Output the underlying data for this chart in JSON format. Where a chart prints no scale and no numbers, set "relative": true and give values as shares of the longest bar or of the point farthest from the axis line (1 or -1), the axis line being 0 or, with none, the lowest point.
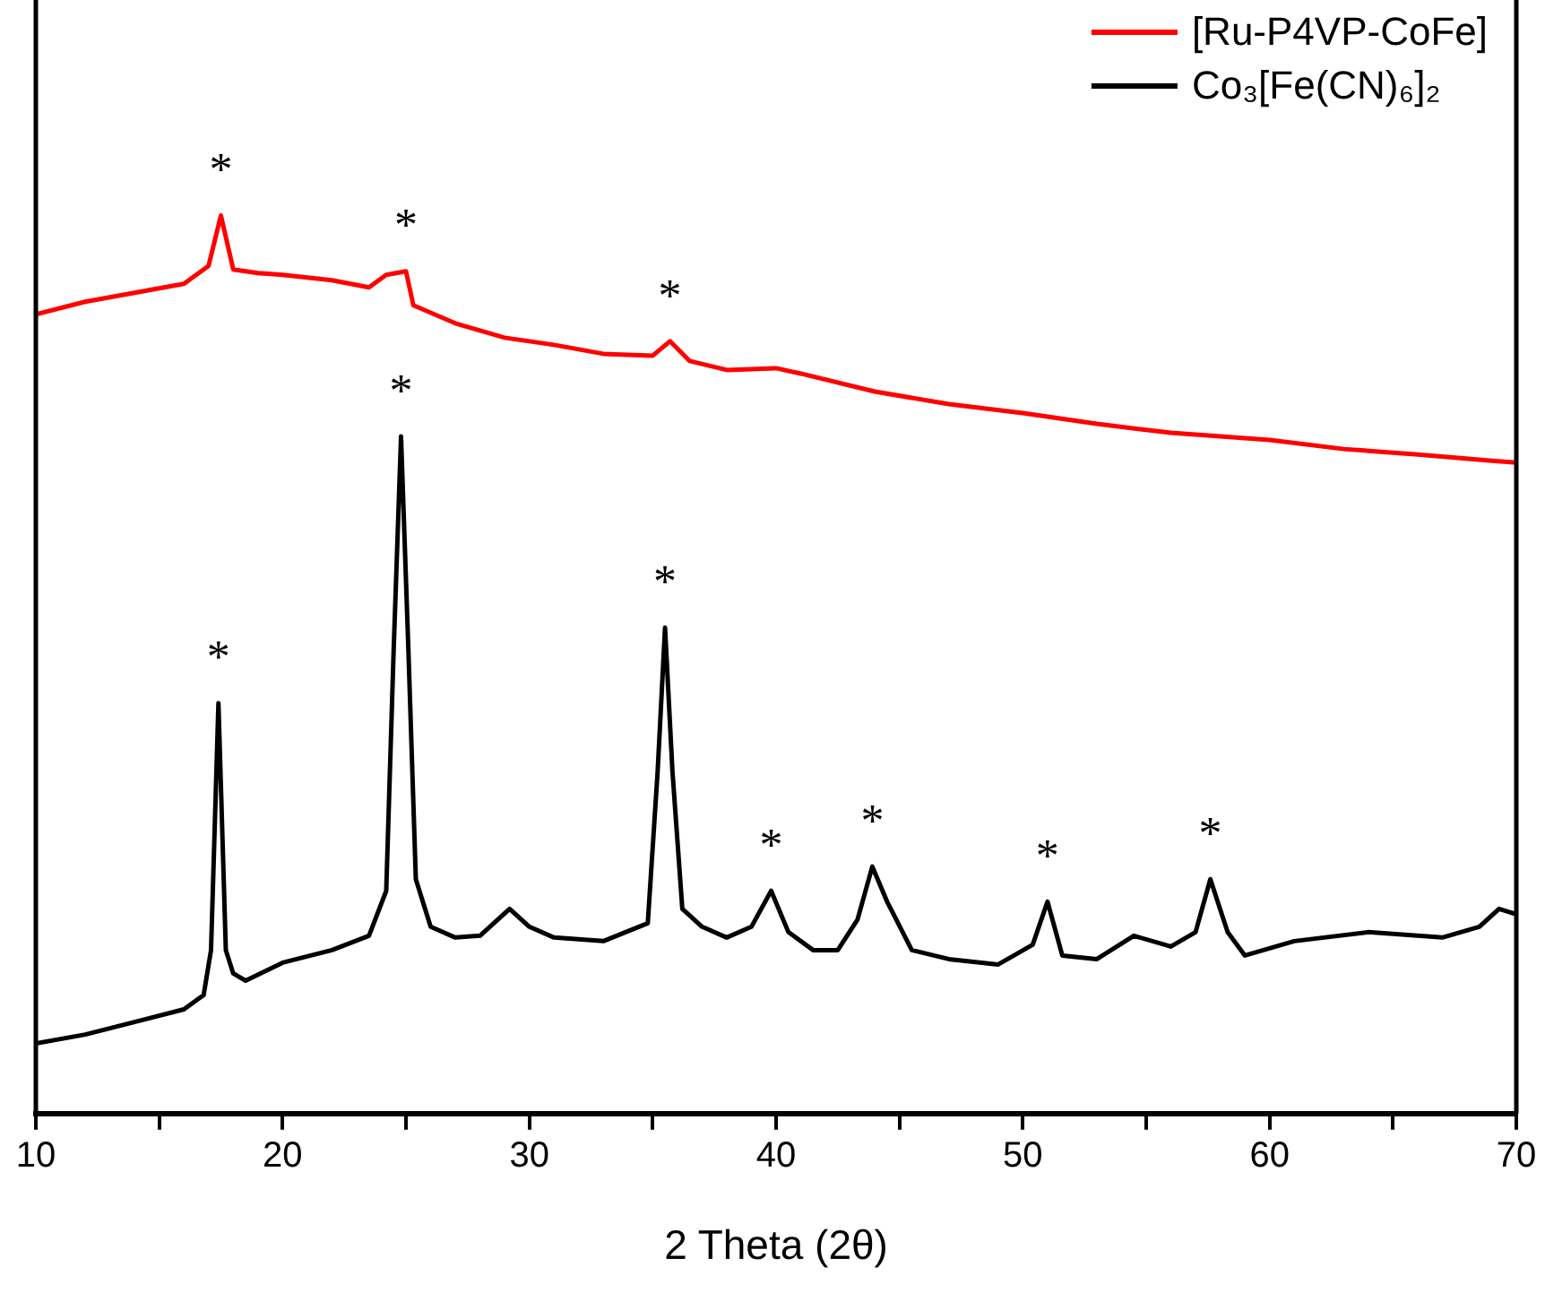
{
  "chart_data": {
    "type": "line",
    "relative": true,
    "xlabel": "2 Theta (2θ)",
    "xlim": [
      10,
      70
    ],
    "xticks": [
      10,
      {
        "value": 15,
        "label": null
      },
      20,
      {
        "value": 25,
        "label": null
      },
      30,
      {
        "value": 35,
        "label": null
      },
      40,
      {
        "value": 45,
        "label": null
      },
      50,
      {
        "value": 55,
        "label": null
      },
      60,
      {
        "value": 65,
        "label": null
      },
      70
    ],
    "legend": "top right",
    "marker": "none",
    "line_style": "solid",
    "series": [
      {
        "name": "[Ru-P4VP-CoFe]",
        "color": "#ff0000",
        "x": [
          10,
          12,
          14,
          16,
          17,
          17.5,
          18,
          19,
          20,
          22,
          23.5,
          24.2,
          25,
          25.3,
          27,
          29,
          31,
          33,
          35,
          35.7,
          36.5,
          38,
          40,
          41,
          44,
          47,
          50,
          53,
          56,
          60,
          63,
          66,
          69,
          70
        ],
        "values": [
          0.89,
          0.904,
          0.914,
          0.924,
          0.944,
          1,
          0.94,
          0.936,
          0.934,
          0.928,
          0.92,
          0.934,
          0.938,
          0.9,
          0.88,
          0.864,
          0.856,
          0.846,
          0.844,
          0.86,
          0.838,
          0.828,
          0.83,
          0.824,
          0.804,
          0.79,
          0.78,
          0.768,
          0.758,
          0.75,
          0.74,
          0.734,
          0.727,
          0.725
        ]
      },
      {
        "name": "Co₃[Fe(CN)₆]₂",
        "color": "#000000",
        "x": [
          10,
          12,
          14,
          16,
          16.8,
          17.1,
          17.4,
          17.7,
          18,
          18.5,
          20,
          22,
          23.5,
          24.2,
          24.5,
          24.8,
          25.1,
          25.4,
          26,
          27,
          28,
          29.2,
          30,
          31,
          33,
          34.8,
          35.2,
          35.5,
          35.8,
          36.2,
          37,
          38,
          39,
          39.8,
          40.5,
          41.5,
          42.5,
          43.3,
          43.9,
          44.5,
          45.5,
          47,
          49,
          50.4,
          51,
          51.6,
          53,
          54.5,
          56,
          57,
          57.6,
          58.3,
          59,
          61,
          64,
          67,
          68.5,
          69.3,
          70
        ],
        "values": [
          0.078,
          0.088,
          0.102,
          0.116,
          0.132,
          0.182,
          0.457,
          0.182,
          0.156,
          0.148,
          0.168,
          0.182,
          0.198,
          0.248,
          0.515,
          0.754,
          0.515,
          0.261,
          0.208,
          0.196,
          0.198,
          0.228,
          0.208,
          0.196,
          0.192,
          0.212,
          0.381,
          0.541,
          0.381,
          0.228,
          0.208,
          0.196,
          0.208,
          0.248,
          0.202,
          0.182,
          0.182,
          0.216,
          0.275,
          0.236,
          0.182,
          0.172,
          0.166,
          0.188,
          0.236,
          0.176,
          0.172,
          0.198,
          0.186,
          0.202,
          0.261,
          0.202,
          0.176,
          0.192,
          0.202,
          0.196,
          0.208,
          0.228,
          0.222
        ]
      }
    ],
    "annotations": [
      {
        "text": "*",
        "x": 17.5,
        "y": 1
      },
      {
        "text": "*",
        "x": 25,
        "y": 0.938
      },
      {
        "text": "*",
        "x": 35.7,
        "y": 0.86
      },
      {
        "text": "*",
        "x": 17.4,
        "y": 0.457
      },
      {
        "text": "*",
        "x": 24.8,
        "y": 0.754
      },
      {
        "text": "*",
        "x": 35.5,
        "y": 0.541
      },
      {
        "text": "*",
        "x": 39.8,
        "y": 0.248
      },
      {
        "text": "*",
        "x": 43.9,
        "y": 0.275
      },
      {
        "text": "*",
        "x": 51,
        "y": 0.236
      },
      {
        "text": "*",
        "x": 57.6,
        "y": 0.261
      }
    ]
  }
}
